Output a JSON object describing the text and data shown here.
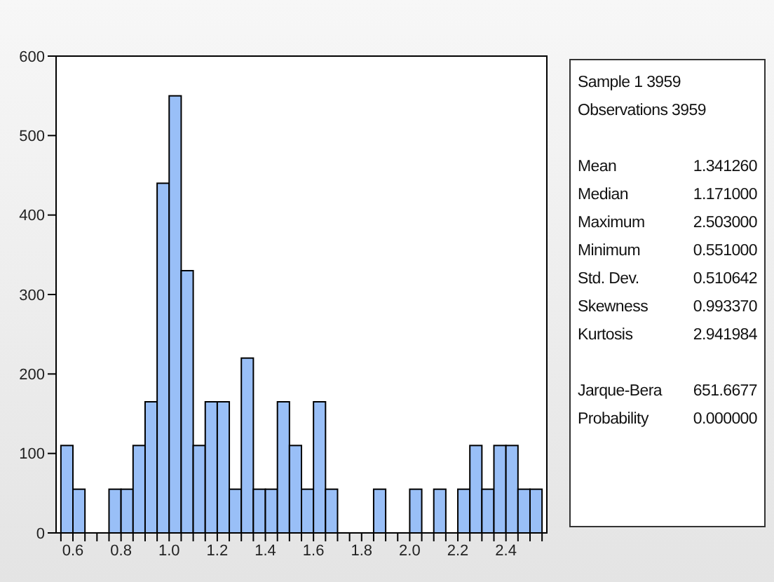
{
  "chart_data": {
    "type": "histogram",
    "bins": [
      0.55,
      0.6,
      0.65,
      0.7,
      0.75,
      0.8,
      0.85,
      0.9,
      0.95,
      1.0,
      1.05,
      1.1,
      1.15,
      1.2,
      1.25,
      1.3,
      1.35,
      1.4,
      1.45,
      1.5,
      1.55,
      1.6,
      1.65,
      1.7,
      1.75,
      1.8,
      1.85,
      1.9,
      1.95,
      2.0,
      2.05,
      2.1,
      2.15,
      2.2,
      2.25,
      2.3,
      2.35,
      2.4,
      2.45,
      2.5,
      2.55
    ],
    "values": [
      110,
      55,
      0,
      0,
      55,
      55,
      110,
      165,
      440,
      550,
      330,
      110,
      165,
      165,
      55,
      220,
      55,
      55,
      165,
      110,
      55,
      165,
      55,
      0,
      0,
      0,
      55,
      0,
      0,
      55,
      0,
      55,
      0,
      55,
      110,
      55,
      110,
      110,
      55,
      55
    ],
    "color": "#99bff7",
    "xlim": [
      0.53,
      2.57
    ],
    "xticks": [
      {
        "value": 0.55,
        "label": null
      },
      {
        "value": 0.6,
        "label": "0.6"
      },
      {
        "value": 0.65,
        "label": null
      },
      {
        "value": 0.7,
        "label": null
      },
      {
        "value": 0.75,
        "label": null
      },
      {
        "value": 0.8,
        "label": "0.8"
      },
      {
        "value": 0.85,
        "label": null
      },
      {
        "value": 0.9,
        "label": null
      },
      {
        "value": 0.95,
        "label": null
      },
      {
        "value": 1.0,
        "label": "1.0"
      },
      {
        "value": 1.05,
        "label": null
      },
      {
        "value": 1.1,
        "label": null
      },
      {
        "value": 1.15,
        "label": null
      },
      {
        "value": 1.2,
        "label": "1.2"
      },
      {
        "value": 1.25,
        "label": null
      },
      {
        "value": 1.3,
        "label": null
      },
      {
        "value": 1.35,
        "label": null
      },
      {
        "value": 1.4,
        "label": "1.4"
      },
      {
        "value": 1.45,
        "label": null
      },
      {
        "value": 1.5,
        "label": null
      },
      {
        "value": 1.55,
        "label": null
      },
      {
        "value": 1.6,
        "label": "1.6"
      },
      {
        "value": 1.65,
        "label": null
      },
      {
        "value": 1.7,
        "label": null
      },
      {
        "value": 1.75,
        "label": null
      },
      {
        "value": 1.8,
        "label": "1.8"
      },
      {
        "value": 1.85,
        "label": null
      },
      {
        "value": 1.9,
        "label": null
      },
      {
        "value": 1.95,
        "label": null
      },
      {
        "value": 2.0,
        "label": "2.0"
      },
      {
        "value": 2.05,
        "label": null
      },
      {
        "value": 2.1,
        "label": null
      },
      {
        "value": 2.15,
        "label": null
      },
      {
        "value": 2.2,
        "label": "2.2"
      },
      {
        "value": 2.25,
        "label": null
      },
      {
        "value": 2.3,
        "label": null
      },
      {
        "value": 2.35,
        "label": null
      },
      {
        "value": 2.4,
        "label": "2.4"
      },
      {
        "value": 2.45,
        "label": null
      },
      {
        "value": 2.5,
        "label": null
      },
      {
        "value": 2.55,
        "label": null
      }
    ],
    "ylim": [
      0,
      600
    ],
    "yticks": [
      0,
      100,
      200,
      300,
      400,
      500,
      600
    ],
    "annotations": [
      "Sample 1 3959",
      "Observations 3959",
      "Mean 1.341260",
      "Median 1.171000",
      "Maximum 2.503000",
      "Minimum 0.551000",
      "Std. Dev. 0.510642",
      "Skewness 0.993370",
      "Kurtosis 2.941984",
      "Jarque-Bera 651.6677",
      "Probability 0.000000"
    ]
  }
}
